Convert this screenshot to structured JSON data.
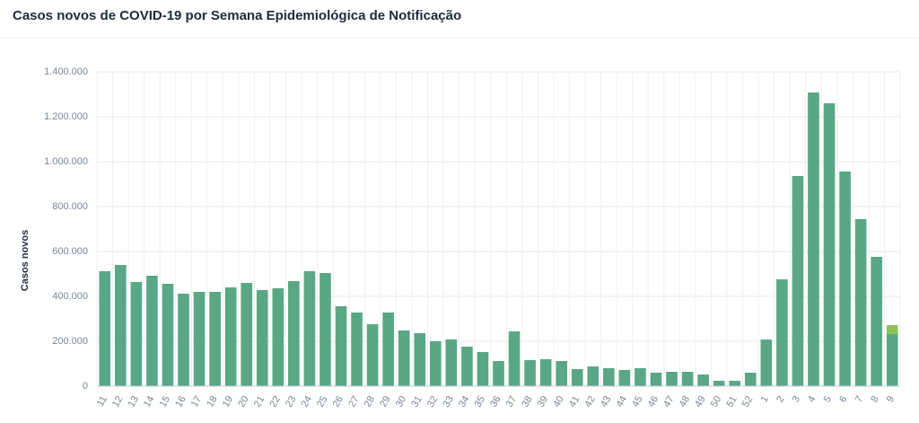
{
  "chart_data": {
    "type": "stacked_bar",
    "title": "Casos novos de COVID-19 por Semana Epidemiológica de Notificação",
    "y_label": "Casos novos",
    "categories": [
      "11",
      "12",
      "13",
      "14",
      "15",
      "16",
      "17",
      "18",
      "19",
      "20",
      "21",
      "22",
      "23",
      "24",
      "25",
      "26",
      "27",
      "28",
      "29",
      "30",
      "31",
      "32",
      "33",
      "34",
      "35",
      "36",
      "37",
      "38",
      "39",
      "40",
      "41",
      "42",
      "43",
      "44",
      "45",
      "46",
      "47",
      "48",
      "49",
      "50",
      "51",
      "52",
      "1",
      "2",
      "3",
      "4",
      "5",
      "6",
      "7",
      "8",
      "9"
    ],
    "series": [
      {
        "color": "#5aa786",
        "values": [
          512000,
          540000,
          464000,
          492000,
          456000,
          412000,
          420000,
          420000,
          440000,
          460000,
          428000,
          436000,
          468000,
          512000,
          504000,
          356000,
          328000,
          276000,
          328000,
          248000,
          236000,
          200000,
          208000,
          176000,
          152000,
          112000,
          244000,
          116000,
          120000,
          112000,
          76000,
          88000,
          80000,
          72000,
          80000,
          60000,
          64000,
          64000,
          52000,
          24000,
          24000,
          60000,
          208000,
          476000,
          936000,
          1308000,
          1260000,
          956000,
          744000,
          576000,
          232000
        ]
      },
      {
        "color": "#8fc15a",
        "values": [
          null,
          null,
          null,
          null,
          null,
          null,
          null,
          null,
          null,
          null,
          null,
          null,
          null,
          null,
          null,
          null,
          null,
          null,
          null,
          null,
          null,
          null,
          null,
          null,
          null,
          null,
          null,
          null,
          null,
          null,
          null,
          null,
          null,
          null,
          null,
          null,
          null,
          null,
          null,
          null,
          null,
          null,
          null,
          null,
          null,
          null,
          null,
          null,
          null,
          null,
          40000
        ]
      }
    ],
    "ylim": [
      0,
      1400000
    ],
    "yticks": [
      0,
      {
        "value": 200000,
        "label": "200.000"
      },
      {
        "value": 400000,
        "label": "400.000"
      },
      {
        "value": 600000,
        "label": "600.000"
      },
      {
        "value": 800000,
        "label": "800.000"
      },
      {
        "value": 1000000,
        "label": "1.000.000"
      },
      {
        "value": 1200000,
        "label": "1.200.000"
      },
      {
        "value": 1400000,
        "label": "1.400.000"
      }
    ],
    "grid": true
  }
}
